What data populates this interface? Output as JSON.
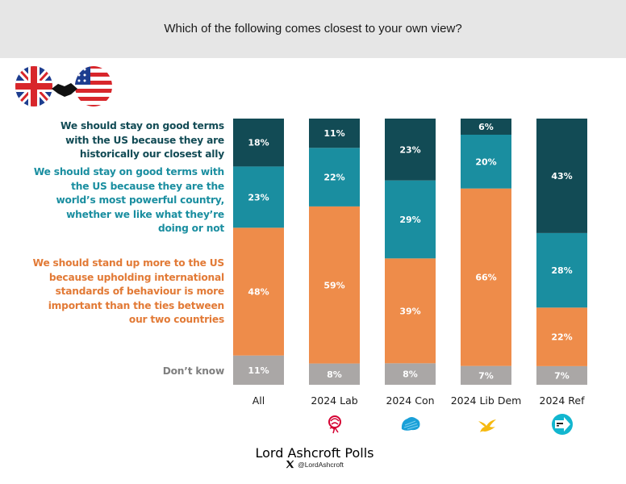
{
  "header": {
    "title": "Which of the following comes closest to your own view?"
  },
  "icons": {
    "flags": "uk-us-handshake-icon",
    "party_logos": [
      "labour-rose-icon",
      "conservative-tree-icon",
      "libdem-bird-icon",
      "reform-arrow-icon"
    ],
    "x_logo": "x-logo-icon"
  },
  "legend": [
    "We should stay on good terms with the US because they are historically our closest ally",
    "We should stay on good terms with the US because they are the world’s most powerful country, whether we like what they’re doing or not",
    "We should stand up more to the US because upholding international standards of behaviour is more important than the ties between our two countries",
    "Don’t know"
  ],
  "legend_lines": [
    [
      "We should stay on good terms",
      "with the US because they are",
      "historically our closest ally"
    ],
    [
      "We should stay on good terms with",
      "the US because they are the",
      "world’s most powerful country,",
      "whether we like what they’re",
      "doing or not"
    ],
    [
      "We should stand up more to the US",
      "because upholding international",
      "standards of behaviour is more",
      "important than the ties between",
      "our two countries"
    ],
    [
      "Don’t know"
    ]
  ],
  "colors": {
    "closest_ally": "#124b55",
    "most_powerful": "#1a8ea0",
    "stand_up": "#ee8c4a",
    "dont_know": "#aaa7a6"
  },
  "footer": {
    "brand": "Lord Ashcroft Polls",
    "handle": "@LordAshcroft"
  },
  "chart_data": {
    "type": "bar",
    "stacked": true,
    "orientation": "vertical",
    "title": "Which of the following comes closest to your own view?",
    "xlabel": "",
    "ylabel": "",
    "ylim": [
      0,
      100
    ],
    "categories": [
      "All",
      "2024 Lab",
      "2024 Con",
      "2024 Lib Dem",
      "2024 Ref"
    ],
    "series": [
      {
        "name": "Don’t know",
        "color": "#aaa7a6",
        "values": [
          11,
          8,
          8,
          7,
          7
        ]
      },
      {
        "name": "We should stand up more to the US because upholding international standards of behaviour is more important than the ties between our two countries",
        "color": "#ee8c4a",
        "values": [
          48,
          59,
          39,
          66,
          22
        ]
      },
      {
        "name": "We should stay on good terms with the US because they are the world’s most powerful country, whether we like what they’re doing or not",
        "color": "#1a8ea0",
        "values": [
          23,
          22,
          29,
          20,
          28
        ]
      },
      {
        "name": "We should stay on good terms with the US because they are historically our closest ally",
        "color": "#124b55",
        "values": [
          18,
          11,
          23,
          6,
          43
        ]
      }
    ],
    "value_suffix": "%",
    "grid": false,
    "legend_position": "left"
  }
}
